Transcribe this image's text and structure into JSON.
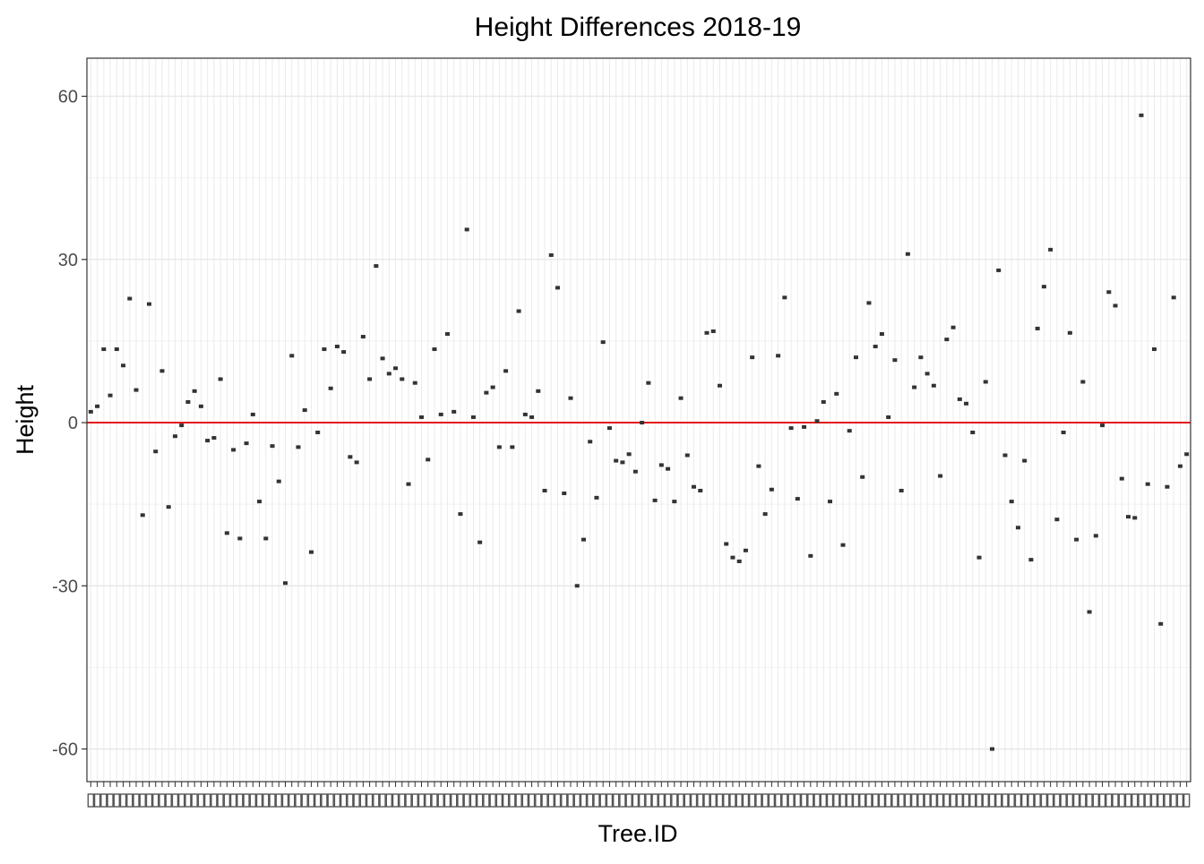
{
  "chart_data": {
    "type": "scatter",
    "title": "Height Differences 2018-19",
    "xlabel": "Tree.ID",
    "ylabel": "Height",
    "ylim": [
      -66,
      67
    ],
    "yticks": [
      -60,
      -30,
      0,
      30,
      60
    ],
    "grid": true,
    "legend": "none",
    "reference_line": {
      "y": 0,
      "color": "#e41a1c"
    },
    "point_color": "#333333",
    "x_tick_labels_note": "x tick labels are overlapping and illegible",
    "series": [
      {
        "values": [
          2,
          3,
          13.5,
          5,
          13.5,
          10.5,
          22.8,
          6,
          -17,
          21.8,
          -5.3,
          9.5,
          -15.5,
          -2.5,
          -0.5,
          3.8,
          5.8,
          3,
          -3.3,
          -2.8,
          8,
          -20.3,
          -5,
          -21.3,
          -3.8,
          1.5,
          -14.5,
          -21.3,
          -4.3,
          -10.8,
          -29.5,
          12.3,
          -4.5,
          2.3,
          -23.8,
          -1.8,
          13.5,
          6.3,
          14,
          13,
          -6.3,
          -7.3,
          15.8,
          8,
          28.8,
          11.8,
          9,
          10,
          8,
          -11.3,
          7.3,
          1,
          -6.8,
          13.5,
          1.5,
          16.3,
          2,
          -16.8,
          35.5,
          1,
          -22,
          5.5,
          6.5,
          -4.5,
          9.5,
          -4.5,
          20.5,
          1.5,
          1,
          5.8,
          -12.5,
          30.8,
          24.8,
          -13,
          4.5,
          -30,
          -21.5,
          -3.5,
          -13.8,
          14.8,
          -1,
          -7,
          -7.3,
          -5.8,
          -9,
          0,
          7.3,
          -14.3,
          -7.8,
          -8.5,
          -14.5,
          4.5,
          -6,
          -11.8,
          -12.5,
          16.5,
          16.8,
          6.8,
          -22.3,
          -24.8,
          -25.5,
          -23.5,
          12,
          -8,
          -16.8,
          -12.3,
          12.3,
          23,
          -1,
          -14,
          -0.8,
          -24.5,
          0.3,
          3.8,
          -14.5,
          5.3,
          -22.5,
          -1.5,
          12,
          -10,
          22,
          14,
          16.3,
          1,
          11.5,
          -12.5,
          31,
          6.5,
          12,
          9,
          6.8,
          -9.8,
          15.3,
          17.5,
          4.3,
          3.5,
          -1.8,
          -24.8,
          7.5,
          -60,
          28,
          -6,
          -14.5,
          -19.3,
          -7,
          -25.2,
          17.3,
          25,
          31.8,
          -17.8,
          -1.8,
          16.5,
          -21.5,
          7.5,
          -34.8,
          -20.8,
          -0.5,
          24,
          21.5,
          -10.3,
          -17.3,
          -17.5,
          56.5,
          -11.3,
          13.5,
          -37,
          -11.8,
          23,
          -8,
          -5.8
        ]
      }
    ]
  }
}
